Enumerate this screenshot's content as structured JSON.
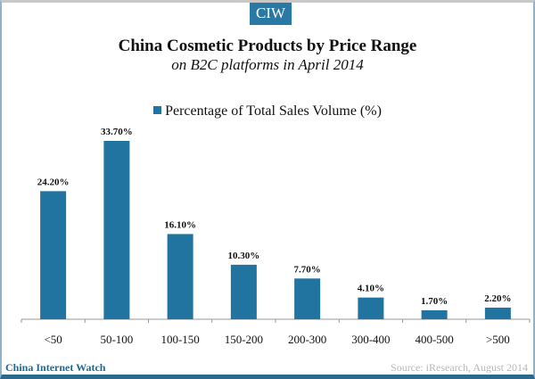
{
  "brand": "CIW",
  "footer": {
    "left": "China Internet Watch",
    "right": "Source: iResearch, August 2014"
  },
  "colors": {
    "bar": "#2173a0",
    "brand": "#2a79a4"
  },
  "chart_data": {
    "type": "bar",
    "title": "China Cosmetic Products by Price Range",
    "subtitle": "on B2C platforms in April 2014",
    "legend": "Percentage of Total Sales Volume (%)",
    "legend_position": "top-center",
    "categories": [
      "<50",
      "50-100",
      "100-150",
      "150-200",
      "200-300",
      "300-400",
      "400-500",
      ">500"
    ],
    "values": [
      24.2,
      33.7,
      16.1,
      10.3,
      7.7,
      4.1,
      1.7,
      2.2
    ],
    "data_labels": [
      "24.20%",
      "33.70%",
      "16.10%",
      "10.30%",
      "7.70%",
      "4.10%",
      "1.70%",
      "2.20%"
    ],
    "xlabel": "",
    "ylabel": "",
    "ylim": [
      0,
      35
    ],
    "grid": false
  }
}
